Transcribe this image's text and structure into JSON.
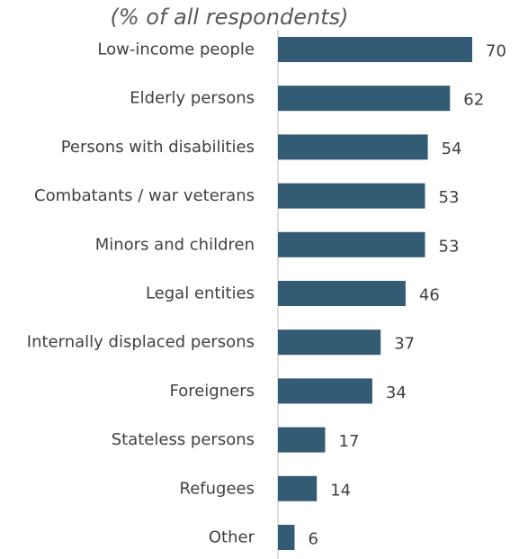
{
  "chart_data": {
    "type": "bar",
    "orientation": "horizontal",
    "subtitle": "(% of all respondents)",
    "categories": [
      "Low-income people",
      "Elderly persons",
      "Persons with disabilities",
      "Combatants / war veterans",
      "Minors and children",
      "Legal entities",
      "Internally displaced persons",
      "Foreigners",
      "Stateless persons",
      "Refugees",
      "Other"
    ],
    "values": [
      70,
      62,
      54,
      53,
      53,
      46,
      37,
      34,
      17,
      14,
      6
    ],
    "xlim": [
      0,
      70
    ],
    "grid": false,
    "legend": "none",
    "colors": {
      "bar": "#335b74",
      "axis": "#bfbfbf",
      "label": "#404040",
      "subtitle": "#595959"
    }
  }
}
